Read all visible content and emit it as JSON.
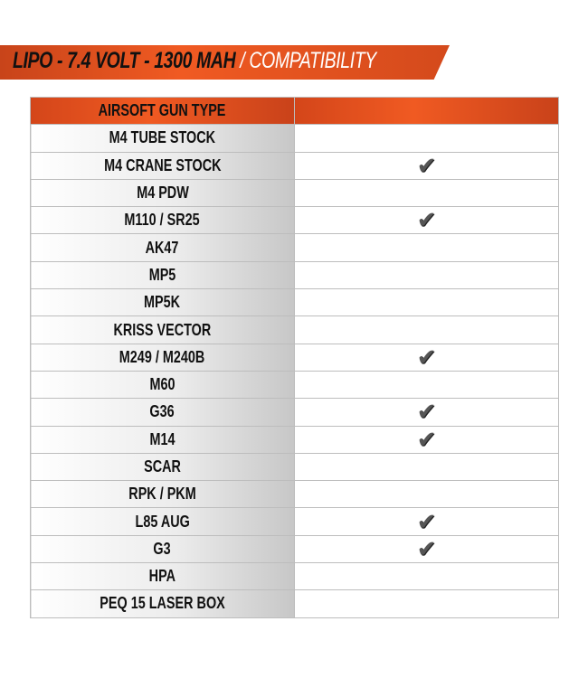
{
  "banner": {
    "title": "LIPO - 7.4 VOLT - 1300 MAH",
    "subtitle": "/ COMPATIBILITY"
  },
  "table": {
    "header": "AIRSOFT GUN TYPE",
    "header2": "",
    "rows": [
      {
        "gun": "M4 TUBE STOCK",
        "compatible": false
      },
      {
        "gun": "M4 CRANE STOCK",
        "compatible": true
      },
      {
        "gun": "M4 PDW",
        "compatible": false
      },
      {
        "gun": "M110 / SR25",
        "compatible": true
      },
      {
        "gun": "AK47",
        "compatible": false
      },
      {
        "gun": "MP5",
        "compatible": false
      },
      {
        "gun": "MP5K",
        "compatible": false
      },
      {
        "gun": "KRISS VECTOR",
        "compatible": false
      },
      {
        "gun": "M249 / M240B",
        "compatible": true
      },
      {
        "gun": "M60",
        "compatible": false
      },
      {
        "gun": "G36",
        "compatible": true
      },
      {
        "gun": "M14",
        "compatible": true
      },
      {
        "gun": "SCAR",
        "compatible": false
      },
      {
        "gun": "RPK / PKM",
        "compatible": false
      },
      {
        "gun": "L85 AUG",
        "compatible": true
      },
      {
        "gun": "G3",
        "compatible": true
      },
      {
        "gun": "HPA",
        "compatible": false
      },
      {
        "gun": "PEQ 15 LASER BOX",
        "compatible": false
      }
    ]
  },
  "colors": {
    "accent": "#f05a22"
  },
  "icons": {
    "check": "checkmark-icon"
  }
}
